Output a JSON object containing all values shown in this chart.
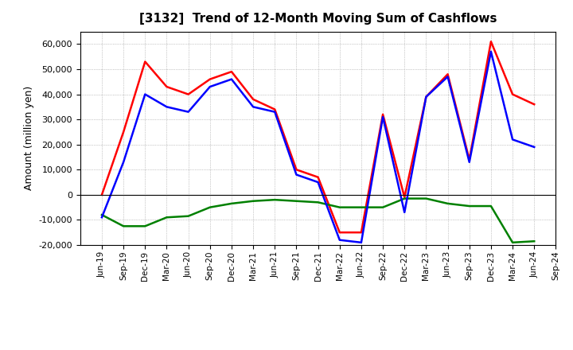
{
  "title": "[3132]  Trend of 12-Month Moving Sum of Cashflows",
  "ylabel": "Amount (million yen)",
  "ylim": [
    -20000,
    65000
  ],
  "yticks": [
    -20000,
    -10000,
    0,
    10000,
    20000,
    30000,
    40000,
    50000,
    60000
  ],
  "background_color": "#ffffff",
  "grid_color": "#aaaaaa",
  "x_labels": [
    "Jun-19",
    "Sep-19",
    "Dec-19",
    "Mar-20",
    "Jun-20",
    "Sep-20",
    "Dec-20",
    "Mar-21",
    "Jun-21",
    "Sep-21",
    "Dec-21",
    "Mar-22",
    "Jun-22",
    "Sep-22",
    "Dec-22",
    "Mar-23",
    "Jun-23",
    "Sep-23",
    "Dec-23",
    "Mar-24",
    "Jun-24",
    "Sep-24"
  ],
  "operating_cashflow": [
    0,
    25000,
    53000,
    43000,
    40000,
    46000,
    49000,
    38000,
    34000,
    10000,
    7000,
    -15000,
    -15000,
    32000,
    -1000,
    39000,
    48000,
    14000,
    61000,
    40000,
    36000,
    null
  ],
  "investing_cashflow": [
    -8000,
    -12500,
    -12500,
    -9000,
    -8500,
    -5000,
    -3500,
    -2500,
    -2000,
    -2500,
    -3000,
    -5000,
    -5000,
    -5000,
    -1500,
    -1500,
    -3500,
    -4500,
    -4500,
    -19000,
    -18500,
    null
  ],
  "free_cashflow": [
    -9000,
    13000,
    40000,
    35000,
    33000,
    43000,
    46000,
    35000,
    33000,
    8000,
    5000,
    -18000,
    -19000,
    31000,
    -7000,
    39000,
    47000,
    13000,
    57000,
    22000,
    19000,
    null
  ],
  "operating_color": "#ff0000",
  "investing_color": "#008000",
  "free_color": "#0000ff",
  "line_width": 1.8
}
